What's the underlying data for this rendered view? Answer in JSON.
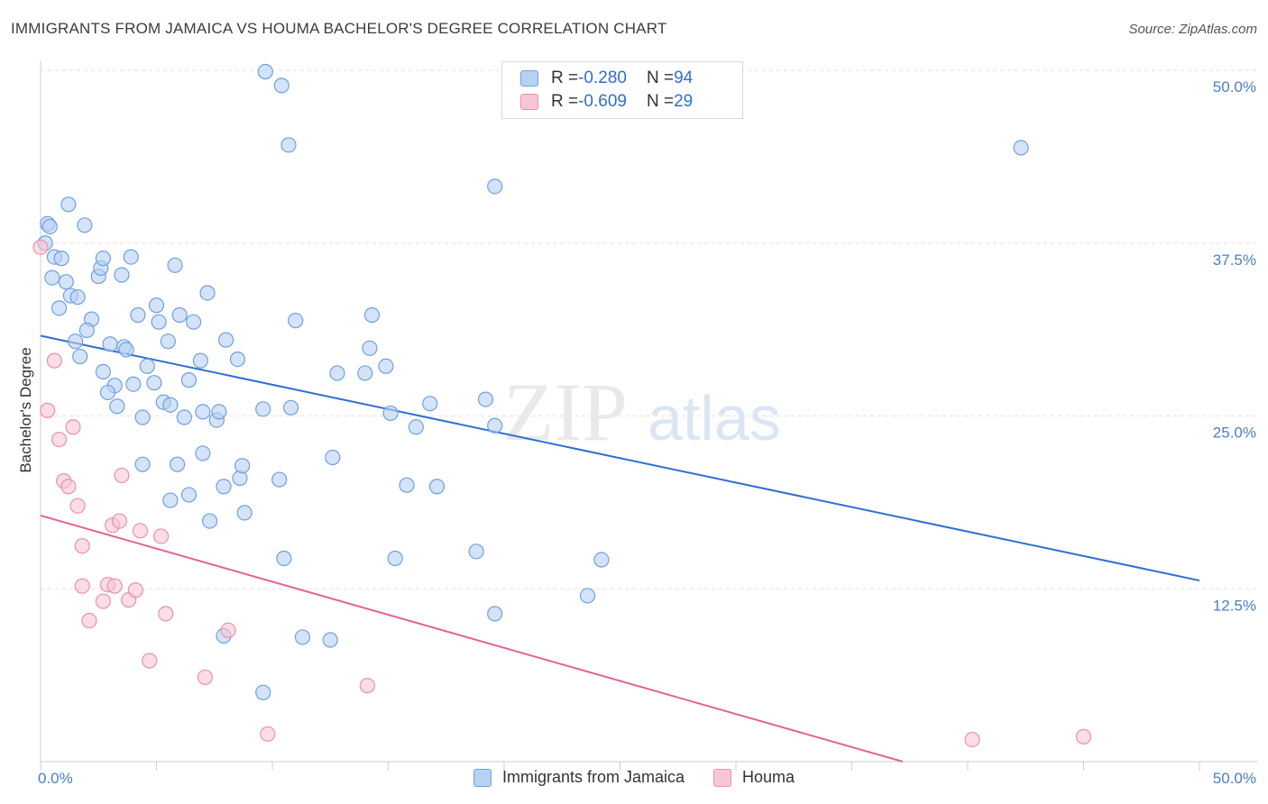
{
  "header": {
    "title": "IMMIGRANTS FROM JAMAICA VS HOUMA BACHELOR'S DEGREE CORRELATION CHART",
    "source": "Source: ZipAtlas.com"
  },
  "watermark": {
    "zip": "ZIP",
    "atlas": "atlas"
  },
  "legend": {
    "rows": [
      {
        "r_label": "R = ",
        "r_value": "-0.280",
        "n_label": "N = ",
        "n_value": "94"
      },
      {
        "r_label": "R = ",
        "r_value": "-0.609",
        "n_label": "N = ",
        "n_value": "29"
      }
    ]
  },
  "bottom_legend": {
    "items": [
      {
        "label": "Immigrants from Jamaica"
      },
      {
        "label": "Houma"
      }
    ]
  },
  "colors": {
    "series1_fill": "#b7d1f2",
    "series1_stroke": "#6fa0e0",
    "series1_line": "#2e6fd1",
    "series2_fill": "#f7c6d4",
    "series2_stroke": "#e891ac",
    "series2_line": "#e06592",
    "grid": "#e2e2e2",
    "tick_text": "#4a7fc8"
  },
  "chart_data": {
    "type": "scatter",
    "title": "IMMIGRANTS FROM JAMAICA VS HOUMA BACHELOR'S DEGREE CORRELATION CHART",
    "xlabel": "",
    "ylabel": "Bachelor's Degree",
    "xlim": [
      0,
      50
    ],
    "ylim": [
      0,
      50
    ],
    "x_tick_labels": [
      "0.0%",
      "50.0%"
    ],
    "y_ticks": [
      12.5,
      25.0,
      37.5,
      50.0
    ],
    "y_tick_labels": [
      "12.5%",
      "25.0%",
      "37.5%",
      "50.0%"
    ],
    "grid": true,
    "legend_position": "top-center",
    "series": [
      {
        "name": "Immigrants from Jamaica",
        "points": [
          [
            0.2,
            37.5
          ],
          [
            0.3,
            38.9
          ],
          [
            0.4,
            38.7
          ],
          [
            0.6,
            36.5
          ],
          [
            0.9,
            36.4
          ],
          [
            0.5,
            35.0
          ],
          [
            1.2,
            40.3
          ],
          [
            1.9,
            38.8
          ],
          [
            1.1,
            34.7
          ],
          [
            1.3,
            33.7
          ],
          [
            1.6,
            33.6
          ],
          [
            0.8,
            32.8
          ],
          [
            2.2,
            32.0
          ],
          [
            2.0,
            31.2
          ],
          [
            1.5,
            30.4
          ],
          [
            2.5,
            35.1
          ],
          [
            2.6,
            35.7
          ],
          [
            2.7,
            36.4
          ],
          [
            3.5,
            35.2
          ],
          [
            3.9,
            36.5
          ],
          [
            1.7,
            29.3
          ],
          [
            3.0,
            30.2
          ],
          [
            3.6,
            30.0
          ],
          [
            3.7,
            29.8
          ],
          [
            4.2,
            32.3
          ],
          [
            5.0,
            33.0
          ],
          [
            5.1,
            31.8
          ],
          [
            5.5,
            30.4
          ],
          [
            5.8,
            35.9
          ],
          [
            6.0,
            32.3
          ],
          [
            6.6,
            31.8
          ],
          [
            7.2,
            33.9
          ],
          [
            2.7,
            28.2
          ],
          [
            3.2,
            27.2
          ],
          [
            2.9,
            26.7
          ],
          [
            3.3,
            25.7
          ],
          [
            4.0,
            27.3
          ],
          [
            4.6,
            28.6
          ],
          [
            4.9,
            27.4
          ],
          [
            5.3,
            26.0
          ],
          [
            5.6,
            25.8
          ],
          [
            6.2,
            24.9
          ],
          [
            4.4,
            24.9
          ],
          [
            6.9,
            29.0
          ],
          [
            6.4,
            27.6
          ],
          [
            7.0,
            25.3
          ],
          [
            7.6,
            24.7
          ],
          [
            7.7,
            25.3
          ],
          [
            8.0,
            30.5
          ],
          [
            8.5,
            29.1
          ],
          [
            9.6,
            25.5
          ],
          [
            11.0,
            31.9
          ],
          [
            10.8,
            25.6
          ],
          [
            12.8,
            28.1
          ],
          [
            14.0,
            28.1
          ],
          [
            14.2,
            29.9
          ],
          [
            14.3,
            32.3
          ],
          [
            14.9,
            28.6
          ],
          [
            15.1,
            25.2
          ],
          [
            16.2,
            24.2
          ],
          [
            16.8,
            25.9
          ],
          [
            19.2,
            26.2
          ],
          [
            19.6,
            24.3
          ],
          [
            4.4,
            21.5
          ],
          [
            5.6,
            18.9
          ],
          [
            5.9,
            21.5
          ],
          [
            6.4,
            19.3
          ],
          [
            7.0,
            22.3
          ],
          [
            7.3,
            17.4
          ],
          [
            7.9,
            19.9
          ],
          [
            8.6,
            20.5
          ],
          [
            8.7,
            21.4
          ],
          [
            8.8,
            18.0
          ],
          [
            10.3,
            20.4
          ],
          [
            12.6,
            22.0
          ],
          [
            15.8,
            20.0
          ],
          [
            17.1,
            19.9
          ],
          [
            10.5,
            14.7
          ],
          [
            15.3,
            14.7
          ],
          [
            18.8,
            15.2
          ],
          [
            24.2,
            14.6
          ],
          [
            23.6,
            12.0
          ],
          [
            19.6,
            10.7
          ],
          [
            7.9,
            9.1
          ],
          [
            11.3,
            9.0
          ],
          [
            12.5,
            8.8
          ],
          [
            9.6,
            5.0
          ],
          [
            9.7,
            49.9
          ],
          [
            10.4,
            48.9
          ],
          [
            10.7,
            44.6
          ],
          [
            19.6,
            41.6
          ],
          [
            42.3,
            44.4
          ]
        ],
        "trend": {
          "x": [
            0,
            50
          ],
          "y": [
            30.8,
            13.1
          ]
        }
      },
      {
        "name": "Houma",
        "points": [
          [
            0.0,
            37.2
          ],
          [
            0.6,
            29.0
          ],
          [
            0.3,
            25.4
          ],
          [
            0.8,
            23.3
          ],
          [
            1.4,
            24.2
          ],
          [
            1.0,
            20.3
          ],
          [
            1.2,
            19.9
          ],
          [
            1.6,
            18.5
          ],
          [
            3.5,
            20.7
          ],
          [
            1.8,
            15.6
          ],
          [
            3.1,
            17.1
          ],
          [
            3.4,
            17.4
          ],
          [
            4.3,
            16.7
          ],
          [
            5.2,
            16.3
          ],
          [
            1.8,
            12.7
          ],
          [
            2.7,
            11.6
          ],
          [
            2.9,
            12.8
          ],
          [
            3.2,
            12.7
          ],
          [
            3.8,
            11.7
          ],
          [
            4.1,
            12.4
          ],
          [
            2.1,
            10.2
          ],
          [
            5.4,
            10.7
          ],
          [
            4.7,
            7.3
          ],
          [
            7.1,
            6.1
          ],
          [
            8.1,
            9.5
          ],
          [
            14.1,
            5.5
          ],
          [
            9.8,
            2.0
          ],
          [
            40.2,
            1.6
          ],
          [
            45.0,
            1.8
          ]
        ],
        "trend": {
          "x": [
            0,
            37.2
          ],
          "y": [
            17.8,
            0
          ]
        }
      }
    ]
  }
}
